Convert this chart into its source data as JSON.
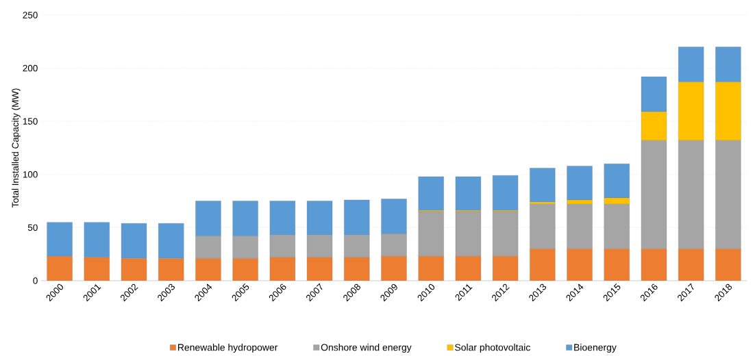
{
  "chart_data": {
    "type": "bar",
    "stacked": true,
    "ylabel": "Total Installed Capacity (MW)",
    "categories": [
      "2000",
      "2001",
      "2002",
      "2003",
      "2004",
      "2005",
      "2006",
      "2007",
      "2008",
      "2009",
      "2010",
      "2011",
      "2012",
      "2013",
      "2014",
      "2015",
      "2016",
      "2017",
      "2018"
    ],
    "series": [
      {
        "name": "Renewable hydropower",
        "color": "#ed7d31",
        "values": [
          23,
          22,
          21,
          21,
          21,
          21,
          22,
          22,
          22,
          23,
          23,
          23,
          23,
          30,
          30,
          30,
          30,
          30,
          30
        ]
      },
      {
        "name": "Onshore wind energy",
        "color": "#a5a5a5",
        "values": [
          0,
          0,
          0,
          0,
          21,
          21,
          21,
          21,
          21,
          21,
          42,
          42,
          42,
          42,
          42,
          42,
          102,
          102,
          102
        ]
      },
      {
        "name": "Solar photovoltaic",
        "color": "#ffc000",
        "values": [
          0,
          0,
          0,
          0,
          0,
          0,
          0,
          0,
          0,
          0,
          1,
          1,
          1,
          2,
          4,
          6,
          27,
          55,
          55
        ]
      },
      {
        "name": "Bioenergy",
        "color": "#5b9bd5",
        "values": [
          32,
          33,
          33,
          33,
          33,
          33,
          32,
          32,
          33,
          33,
          32,
          32,
          33,
          32,
          32,
          32,
          33,
          33,
          33
        ]
      }
    ],
    "ylim": [
      0,
      250
    ],
    "yticks": [
      0,
      50,
      100,
      150,
      200,
      250
    ],
    "grid": "y",
    "legend": "bottom"
  }
}
